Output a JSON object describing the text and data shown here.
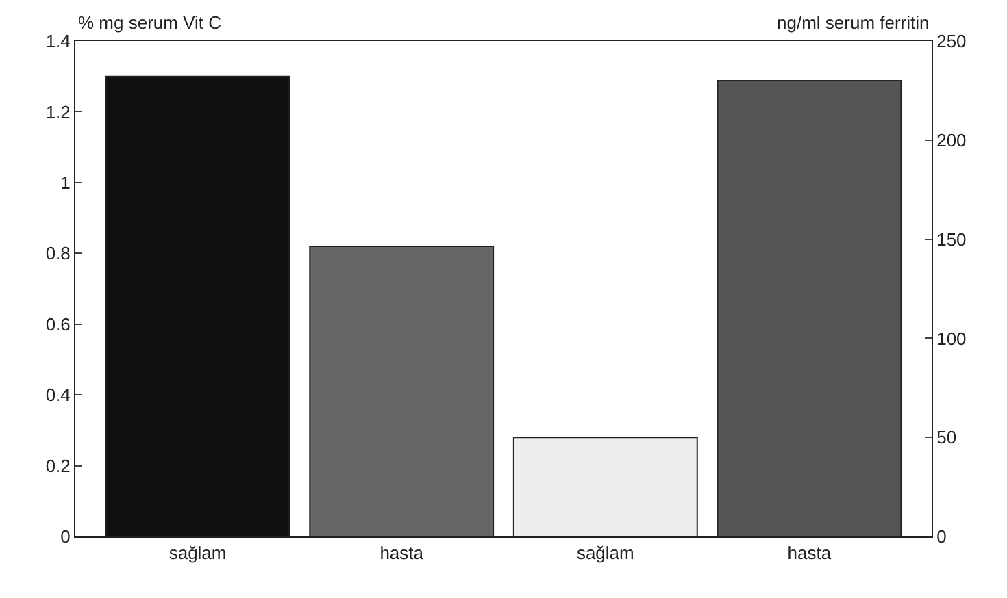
{
  "chart_data": {
    "type": "bar",
    "ylabel": "% mg serum Vit C",
    "y2label": "ng/ml serum ferritin",
    "categories": [
      "sağlam",
      "hasta",
      "sağlam",
      "hasta"
    ],
    "series": [
      {
        "colors": [
          "#111111",
          "#666666",
          "#eeeeee",
          "#666666"
        ],
        "values": [
          1.3,
          0.82,
          null,
          null
        ]
      },
      {
        "axis": "y2",
        "colors": [
          "#111111",
          "#666666",
          "#eeeeee",
          "#555555"
        ],
        "values": [
          null,
          null,
          50,
          230
        ]
      }
    ],
    "ylim": [
      0,
      1.4
    ],
    "yticks": [
      0,
      0.2,
      0.4,
      0.6,
      0.8,
      1,
      1.2,
      1.4
    ],
    "y2lim": [
      0,
      250
    ],
    "y2ticks": [
      0,
      50,
      100,
      150,
      200,
      250
    ]
  }
}
